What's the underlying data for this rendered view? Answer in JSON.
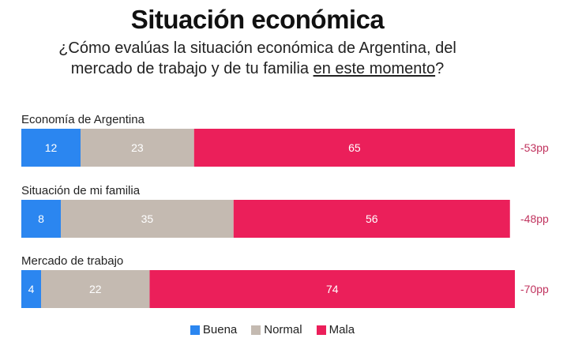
{
  "chart_data": {
    "type": "bar",
    "orientation": "horizontal",
    "stacked": true,
    "title": "Situación económica",
    "subtitle_line1": "¿Cómo evalúas la situación económica de Argentina, del",
    "subtitle_line2_prefix": "mercado de trabajo y de tu familia ",
    "subtitle_line2_underlined": "en este momento",
    "subtitle_line2_suffix": "?",
    "categories": [
      "Economía de Argentina",
      "Situación de mi familia",
      "Mercado de trabajo"
    ],
    "series": [
      {
        "name": "Buena",
        "values": [
          12,
          8,
          4
        ],
        "color": "#2b86f0"
      },
      {
        "name": "Normal",
        "values": [
          23,
          35,
          22
        ],
        "color": "#c4bab1"
      },
      {
        "name": "Mala",
        "values": [
          65,
          56,
          74
        ],
        "color": "#eb1f5a"
      }
    ],
    "net": [
      "-53pp",
      "-48pp",
      "-70pp"
    ],
    "net_color": "#c0335e",
    "xlim": [
      0,
      100
    ],
    "legend_position": "bottom",
    "grid": false
  }
}
